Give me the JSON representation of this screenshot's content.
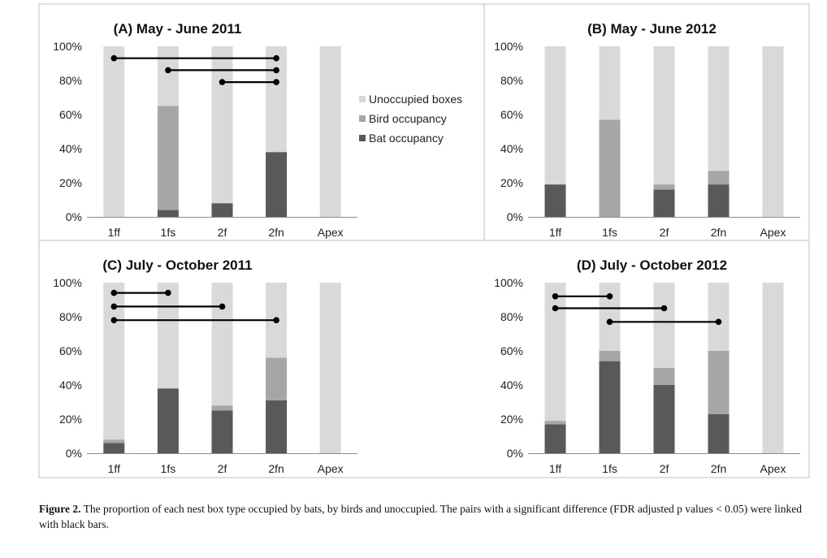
{
  "chart_data": [
    {
      "type": "bar",
      "stacked": true,
      "title": "(A) May - June 2011",
      "categories": [
        "1ff",
        "1fs",
        "2f",
        "2fn",
        "Apex"
      ],
      "ylim": [
        0,
        100
      ],
      "yticks": [
        "0%",
        "20%",
        "40%",
        "60%",
        "80%",
        "100%"
      ],
      "series": [
        {
          "name": "Bat occupancy",
          "values": [
            0,
            4,
            8,
            38,
            0
          ]
        },
        {
          "name": "Bird occupancy",
          "values": [
            0,
            61,
            0,
            0,
            0
          ]
        },
        {
          "name": "Unoccupied boxes",
          "values": [
            100,
            35,
            92,
            62,
            100
          ]
        }
      ],
      "significance_pairs": [
        {
          "from": "1ff",
          "to": "2fn",
          "y": 93
        },
        {
          "from": "1fs",
          "to": "2fn",
          "y": 86
        },
        {
          "from": "2f",
          "to": "2fn",
          "y": 79
        }
      ],
      "legend": "right",
      "grid": false
    },
    {
      "type": "bar",
      "stacked": true,
      "title": "(B) May - June 2012",
      "categories": [
        "1ff",
        "1fs",
        "2f",
        "2fn",
        "Apex"
      ],
      "ylim": [
        0,
        100
      ],
      "yticks": [
        "0%",
        "20%",
        "40%",
        "60%",
        "80%",
        "100%"
      ],
      "series": [
        {
          "name": "Bat occupancy",
          "values": [
            19,
            0,
            16,
            19,
            0
          ]
        },
        {
          "name": "Bird occupancy",
          "values": [
            0,
            57,
            3,
            8,
            0
          ]
        },
        {
          "name": "Unoccupied boxes",
          "values": [
            81,
            43,
            81,
            73,
            100
          ]
        }
      ],
      "significance_pairs": [],
      "grid": false
    },
    {
      "type": "bar",
      "stacked": true,
      "title": "(C) July - October 2011",
      "categories": [
        "1ff",
        "1fs",
        "2f",
        "2fn",
        "Apex"
      ],
      "ylim": [
        0,
        100
      ],
      "yticks": [
        "0%",
        "20%",
        "40%",
        "60%",
        "80%",
        "100%"
      ],
      "series": [
        {
          "name": "Bat occupancy",
          "values": [
            6,
            38,
            25,
            31,
            0
          ]
        },
        {
          "name": "Bird occupancy",
          "values": [
            2,
            0,
            3,
            25,
            0
          ]
        },
        {
          "name": "Unoccupied boxes",
          "values": [
            92,
            62,
            72,
            44,
            100
          ]
        }
      ],
      "significance_pairs": [
        {
          "from": "1ff",
          "to": "1fs",
          "y": 94
        },
        {
          "from": "1ff",
          "to": "2f",
          "y": 86
        },
        {
          "from": "1ff",
          "to": "2fn",
          "y": 78
        }
      ],
      "grid": false
    },
    {
      "type": "bar",
      "stacked": true,
      "title": "(D) July - October 2012",
      "categories": [
        "1ff",
        "1fs",
        "2f",
        "2fn",
        "Apex"
      ],
      "ylim": [
        0,
        100
      ],
      "yticks": [
        "0%",
        "20%",
        "40%",
        "60%",
        "80%",
        "100%"
      ],
      "series": [
        {
          "name": "Bat occupancy",
          "values": [
            17,
            54,
            40,
            23,
            0
          ]
        },
        {
          "name": "Bird occupancy",
          "values": [
            2,
            6,
            10,
            37,
            0
          ]
        },
        {
          "name": "Unoccupied boxes",
          "values": [
            81,
            40,
            50,
            40,
            100
          ]
        }
      ],
      "significance_pairs": [
        {
          "from": "1ff",
          "to": "1fs",
          "y": 92
        },
        {
          "from": "1ff",
          "to": "2f",
          "y": 85
        },
        {
          "from": "1fs",
          "to": "2fn",
          "y": 77
        }
      ],
      "grid": false
    }
  ],
  "colors": {
    "Unoccupied boxes": "#d9d9d9",
    "Bird occupancy": "#a6a6a6",
    "Bat occupancy": "#595959",
    "significance_bar": "#000000",
    "panel_border": "#bfbfbf"
  },
  "legend_items": [
    "Unoccupied boxes",
    "Bird occupancy",
    "Bat occupancy"
  ],
  "caption": {
    "label": "Figure 2.",
    "text": " The proportion of each nest box type occupied by bats, by birds and unoccupied. The pairs with a significant difference (FDR adjusted p values < 0.05) were linked with black bars."
  }
}
